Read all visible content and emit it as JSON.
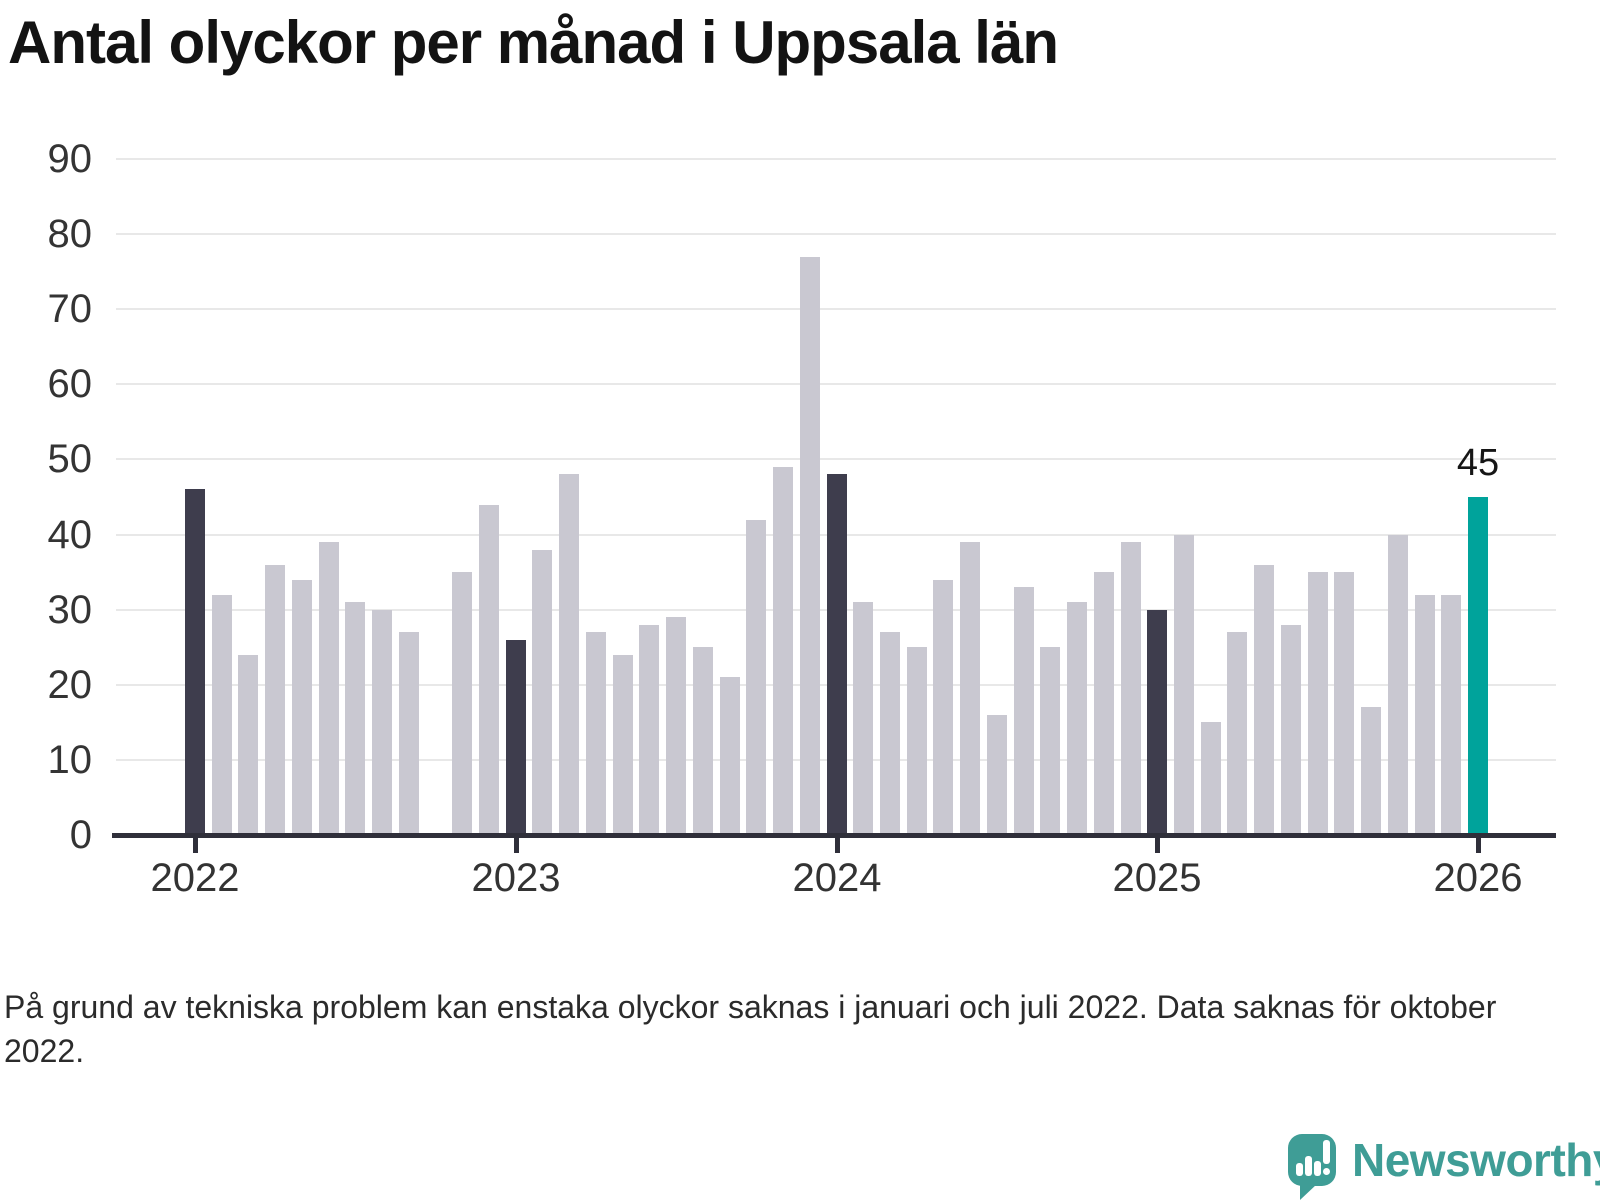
{
  "footnote": "På grund av tekniska problem kan enstaka olyckor saknas i januari och juli 2022. Data saknas för oktober 2022.",
  "branding": {
    "logo_text": "Newsworthy",
    "logo_icon": "newsworthy-speech-bubble-barchart-icon"
  },
  "colors": {
    "bar_normal": "#c9c8d1",
    "bar_january": "#3e3d4d",
    "bar_latest": "#00a39b",
    "gridline": "#e8e8e8",
    "axis": "#2f2f3a",
    "logo": "#3f9d96",
    "title_text": "#131313",
    "label_text": "#343434"
  },
  "chart_data": {
    "type": "bar",
    "title": "Antal olyckor per månad i Uppsala län",
    "x_unit": "month",
    "ylim": [
      0,
      90
    ],
    "y_ticks": [
      0,
      10,
      20,
      30,
      40,
      50,
      60,
      70,
      80,
      90
    ],
    "grid": true,
    "legend": false,
    "x_ticks": [
      {
        "label": "2022",
        "month": "2022-01"
      },
      {
        "label": "2023",
        "month": "2023-01"
      },
      {
        "label": "2024",
        "month": "2024-01"
      },
      {
        "label": "2025",
        "month": "2025-01"
      },
      {
        "label": "2026",
        "month": "2026-01"
      }
    ],
    "missing_months": [
      "2022-10"
    ],
    "annotations": [
      {
        "text": "45",
        "month": "2026-01"
      }
    ],
    "bars": [
      {
        "month": "2022-01",
        "value": 46,
        "role": "january"
      },
      {
        "month": "2022-02",
        "value": 32,
        "role": "normal"
      },
      {
        "month": "2022-03",
        "value": 24,
        "role": "normal"
      },
      {
        "month": "2022-04",
        "value": 36,
        "role": "normal"
      },
      {
        "month": "2022-05",
        "value": 34,
        "role": "normal"
      },
      {
        "month": "2022-06",
        "value": 39,
        "role": "normal"
      },
      {
        "month": "2022-07",
        "value": 31,
        "role": "normal"
      },
      {
        "month": "2022-08",
        "value": 30,
        "role": "normal"
      },
      {
        "month": "2022-09",
        "value": 27,
        "role": "normal"
      },
      {
        "month": "2022-11",
        "value": 35,
        "role": "normal"
      },
      {
        "month": "2022-12",
        "value": 44,
        "role": "normal"
      },
      {
        "month": "2023-01",
        "value": 26,
        "role": "january"
      },
      {
        "month": "2023-02",
        "value": 38,
        "role": "normal"
      },
      {
        "month": "2023-03",
        "value": 48,
        "role": "normal"
      },
      {
        "month": "2023-04",
        "value": 27,
        "role": "normal"
      },
      {
        "month": "2023-05",
        "value": 24,
        "role": "normal"
      },
      {
        "month": "2023-06",
        "value": 28,
        "role": "normal"
      },
      {
        "month": "2023-07",
        "value": 29,
        "role": "normal"
      },
      {
        "month": "2023-08",
        "value": 25,
        "role": "normal"
      },
      {
        "month": "2023-09",
        "value": 21,
        "role": "normal"
      },
      {
        "month": "2023-10",
        "value": 42,
        "role": "normal"
      },
      {
        "month": "2023-11",
        "value": 49,
        "role": "normal"
      },
      {
        "month": "2023-12",
        "value": 77,
        "role": "normal"
      },
      {
        "month": "2024-01",
        "value": 48,
        "role": "january"
      },
      {
        "month": "2024-02",
        "value": 31,
        "role": "normal"
      },
      {
        "month": "2024-03",
        "value": 27,
        "role": "normal"
      },
      {
        "month": "2024-04",
        "value": 25,
        "role": "normal"
      },
      {
        "month": "2024-05",
        "value": 34,
        "role": "normal"
      },
      {
        "month": "2024-06",
        "value": 39,
        "role": "normal"
      },
      {
        "month": "2024-07",
        "value": 16,
        "role": "normal"
      },
      {
        "month": "2024-08",
        "value": 33,
        "role": "normal"
      },
      {
        "month": "2024-09",
        "value": 25,
        "role": "normal"
      },
      {
        "month": "2024-10",
        "value": 31,
        "role": "normal"
      },
      {
        "month": "2024-11",
        "value": 35,
        "role": "normal"
      },
      {
        "month": "2024-12",
        "value": 39,
        "role": "normal"
      },
      {
        "month": "2025-01",
        "value": 30,
        "role": "january"
      },
      {
        "month": "2025-02",
        "value": 40,
        "role": "normal"
      },
      {
        "month": "2025-03",
        "value": 15,
        "role": "normal"
      },
      {
        "month": "2025-04",
        "value": 27,
        "role": "normal"
      },
      {
        "month": "2025-05",
        "value": 36,
        "role": "normal"
      },
      {
        "month": "2025-06",
        "value": 28,
        "role": "normal"
      },
      {
        "month": "2025-07",
        "value": 35,
        "role": "normal"
      },
      {
        "month": "2025-08",
        "value": 35,
        "role": "normal"
      },
      {
        "month": "2025-09",
        "value": 17,
        "role": "normal"
      },
      {
        "month": "2025-10",
        "value": 40,
        "role": "normal"
      },
      {
        "month": "2025-11",
        "value": 32,
        "role": "normal"
      },
      {
        "month": "2025-12",
        "value": 32,
        "role": "normal"
      },
      {
        "month": "2026-01",
        "value": 45,
        "role": "latest"
      }
    ]
  }
}
